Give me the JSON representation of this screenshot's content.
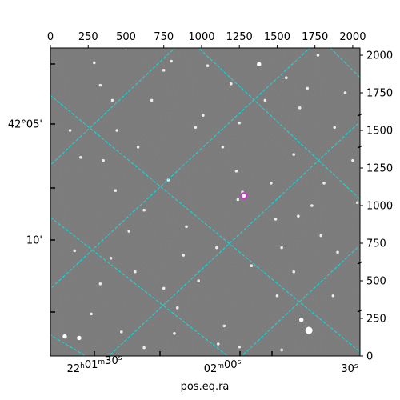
{
  "chart_data": {
    "type": "image",
    "title": "",
    "xlabel": "pos.eq.ra",
    "ylabel": "",
    "pixel_axes": {
      "x": {
        "range": [
          0,
          2048
        ],
        "ticks": [
          0,
          250,
          500,
          750,
          1000,
          1250,
          1500,
          1750,
          2000
        ],
        "position": "top"
      },
      "y": {
        "range": [
          0,
          2048
        ],
        "ticks": [
          0,
          250,
          500,
          750,
          1000,
          1250,
          1500,
          1750,
          2000
        ],
        "position": "right"
      }
    },
    "ra_ticks": [
      "22h01m30s",
      "02m00s",
      "30s"
    ],
    "dec_ticks": [
      "42°05'",
      "10'"
    ],
    "ra_tick_positions": [
      300,
      1100,
      2000
    ],
    "dec_tick_positions": [
      1520,
      750
    ],
    "grid": true,
    "grid_color": "#00e5e5",
    "marker": {
      "x": 1280,
      "y": 1065,
      "color": "#cc33cc",
      "shape": "circle"
    },
    "stars": [
      [
        1280,
        1065,
        3
      ],
      [
        1240,
        1040,
        2
      ],
      [
        1270,
        1090,
        2
      ],
      [
        1195,
        1810,
        2
      ],
      [
        960,
        1520,
        2
      ],
      [
        1330,
        600,
        2
      ],
      [
        750,
        450,
        2
      ],
      [
        190,
        120,
        3
      ],
      [
        95,
        130,
        3
      ],
      [
        330,
        1800,
        2
      ],
      [
        410,
        1700,
        2
      ],
      [
        1700,
        1780,
        2
      ],
      [
        1770,
        2000,
        2
      ],
      [
        1380,
        1940,
        3
      ],
      [
        1460,
        1150,
        2
      ],
      [
        1490,
        910,
        2
      ],
      [
        1530,
        720,
        2
      ],
      [
        1610,
        560,
        2
      ],
      [
        1500,
        400,
        2
      ],
      [
        1660,
        240,
        3
      ],
      [
        1710,
        170,
        5
      ],
      [
        1530,
        40,
        2
      ],
      [
        1250,
        60,
        2
      ],
      [
        1110,
        80,
        2
      ],
      [
        620,
        55,
        2
      ],
      [
        840,
        320,
        2
      ],
      [
        200,
        1320,
        2
      ],
      [
        160,
        700,
        2
      ],
      [
        440,
        1500,
        2
      ],
      [
        800,
        1960,
        2
      ],
      [
        1010,
        1600,
        2
      ],
      [
        1140,
        1390,
        2
      ],
      [
        1810,
        1150,
        2
      ],
      [
        1950,
        1750,
        2
      ],
      [
        2000,
        1300,
        2
      ],
      [
        1880,
        1520,
        2
      ],
      [
        1100,
        720,
        2
      ],
      [
        520,
        830,
        2
      ],
      [
        620,
        970,
        2
      ],
      [
        780,
        1170,
        2
      ],
      [
        900,
        860,
        2
      ],
      [
        330,
        480,
        2
      ],
      [
        270,
        280,
        2
      ],
      [
        430,
        1100,
        2
      ],
      [
        350,
        1300,
        2
      ],
      [
        980,
        500,
        2
      ],
      [
        1730,
        1000,
        2
      ],
      [
        1870,
        400,
        2
      ],
      [
        1900,
        690,
        2
      ],
      [
        1040,
        1930,
        2
      ],
      [
        1560,
        1850,
        2
      ],
      [
        1610,
        1340,
        2
      ],
      [
        2030,
        1020,
        2
      ],
      [
        1150,
        200,
        2
      ],
      [
        820,
        150,
        2
      ],
      [
        470,
        160,
        2
      ],
      [
        750,
        1900,
        2
      ],
      [
        580,
        1390,
        2
      ],
      [
        1230,
        1230,
        2
      ],
      [
        1640,
        930,
        2
      ],
      [
        400,
        650,
        2
      ],
      [
        560,
        560,
        2
      ],
      [
        880,
        670,
        2
      ],
      [
        1420,
        1700,
        2
      ],
      [
        1250,
        1550,
        2
      ],
      [
        1650,
        1650,
        2
      ],
      [
        1790,
        800,
        2
      ],
      [
        670,
        1700,
        2
      ],
      [
        290,
        1950,
        2
      ],
      [
        130,
        1500,
        2
      ]
    ],
    "ra_grid_lines": [
      [
        [
          1160,
          -100
        ],
        [
          2200,
          880
        ]
      ],
      [
        [
          280,
          -100
        ],
        [
          2200,
          1700
        ]
      ],
      [
        [
          -200,
          260
        ],
        [
          2200,
          2500
        ]
      ],
      [
        [
          -200,
          1080
        ],
        [
          1300,
          2500
        ]
      ],
      [
        [
          -200,
          1880
        ],
        [
          500,
          2500
        ]
      ]
    ],
    "dec_grid_lines": [
      [
        [
          -200,
          260
        ],
        [
          400,
          -100
        ]
      ],
      [
        [
          -200,
          1080
        ],
        [
          1300,
          -100
        ]
      ],
      [
        [
          -200,
          1900
        ],
        [
          2200,
          -100
        ]
      ],
      [
        [
          500,
          2500
        ],
        [
          2200,
          900
        ]
      ],
      [
        [
          1400,
          2500
        ],
        [
          2200,
          1700
        ]
      ]
    ]
  }
}
